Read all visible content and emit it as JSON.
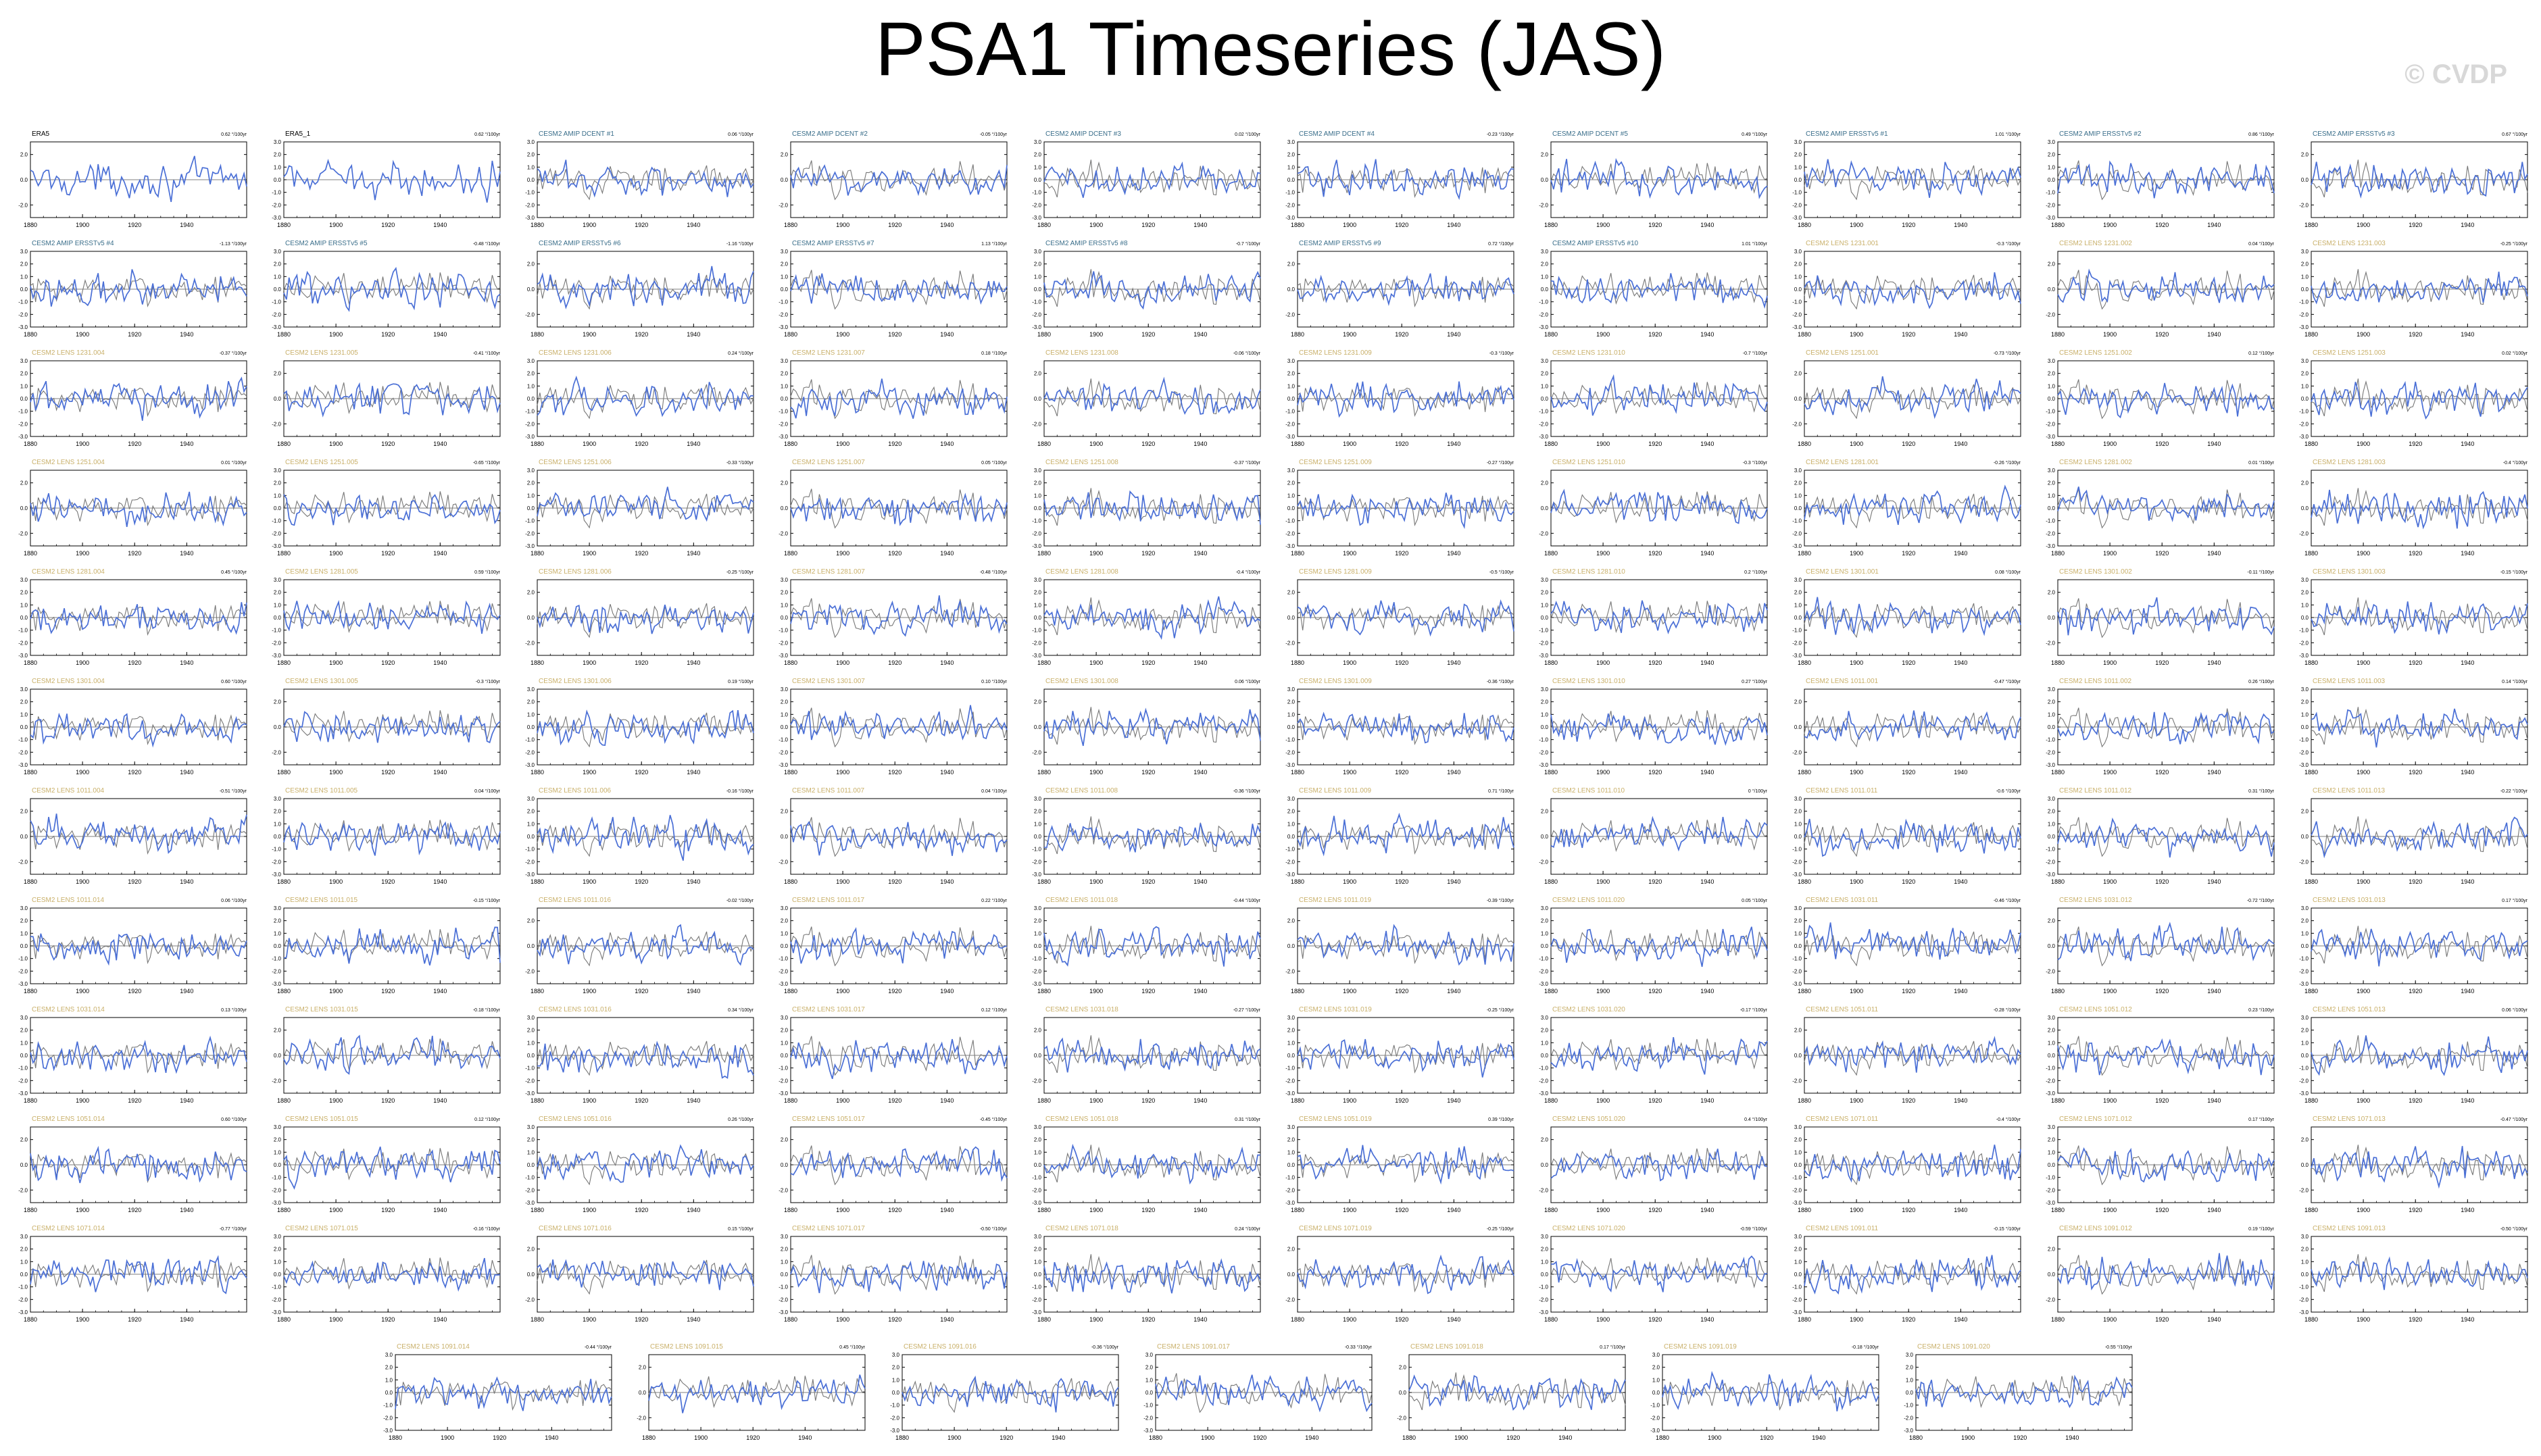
{
  "header": {
    "title": "PSA1 Timeseries (JAS)",
    "watermark": "© CVDP"
  },
  "colors": {
    "model_line": "#4a6fd6",
    "obs_line": "#777777",
    "obs_title": "#000000",
    "amip_title": "#3a6e8a",
    "lens_title": "#c9b06a"
  },
  "chart_data": {
    "type": "line",
    "x_ticks": [
      "1880",
      "1900",
      "1920",
      "1940"
    ],
    "xlim": [
      1880,
      1963
    ],
    "ylim": [
      -3,
      3
    ],
    "y_ticks_a": [
      "3.0",
      "2.0",
      "1.0",
      "0.0",
      "-1.0",
      "-2.0",
      "-3.0"
    ],
    "y_ticks_b": [
      "2.0",
      "0.0",
      "-2.0"
    ],
    "panels": [
      {
        "title": "ERA5",
        "trend": "0.62 °/100yr"
      },
      {
        "title": "ERA5_1",
        "trend": "0.62 °/100yr"
      },
      {
        "title": "CESM2 AMIP DCENT #1",
        "trend": "0.06 °/100yr"
      },
      {
        "title": "CESM2 AMIP DCENT #2",
        "trend": "-0.05 °/100yr"
      },
      {
        "title": "CESM2 AMIP DCENT #3",
        "trend": "0.02 °/100yr"
      },
      {
        "title": "CESM2 AMIP DCENT #4",
        "trend": "-0.23 °/100yr"
      },
      {
        "title": "CESM2 AMIP DCENT #5",
        "trend": "0.49 °/100yr"
      },
      {
        "title": "CESM2 AMIP ERSSTv5 #1",
        "trend": "1.01 °/100yr"
      },
      {
        "title": "CESM2 AMIP ERSSTv5 #2",
        "trend": "0.86 °/100yr"
      },
      {
        "title": "CESM2 AMIP ERSSTv5 #3",
        "trend": "0.67 °/100yr"
      },
      {
        "title": "CESM2 AMIP ERSSTv5 #4",
        "trend": "-1.13 °/100yr"
      },
      {
        "title": "CESM2 AMIP ERSSTv5 #5",
        "trend": "-0.48 °/100yr"
      },
      {
        "title": "CESM2 AMIP ERSSTv5 #6",
        "trend": "-1.16 °/100yr"
      },
      {
        "title": "CESM2 AMIP ERSSTv5 #7",
        "trend": "1.13 °/100yr"
      },
      {
        "title": "CESM2 AMIP ERSSTv5 #8",
        "trend": "-0.7 °/100yr"
      },
      {
        "title": "CESM2 AMIP ERSSTv5 #9",
        "trend": "0.72 °/100yr"
      },
      {
        "title": "CESM2 AMIP ERSSTv5 #10",
        "trend": "1.01 °/100yr"
      },
      {
        "title": "CESM2 LENS 1231.001",
        "trend": "-0.3 °/100yr"
      },
      {
        "title": "CESM2 LENS 1231.002",
        "trend": "0.04 °/100yr"
      },
      {
        "title": "CESM2 LENS 1231.003",
        "trend": "-0.25 °/100yr"
      },
      {
        "title": "CESM2 LENS 1231.004",
        "trend": "-0.37 °/100yr"
      },
      {
        "title": "CESM2 LENS 1231.005",
        "trend": "-0.41 °/100yr"
      },
      {
        "title": "CESM2 LENS 1231.006",
        "trend": "0.24 °/100yr"
      },
      {
        "title": "CESM2 LENS 1231.007",
        "trend": "0.18 °/100yr"
      },
      {
        "title": "CESM2 LENS 1231.008",
        "trend": "-0.06 °/100yr"
      },
      {
        "title": "CESM2 LENS 1231.009",
        "trend": "-0.3 °/100yr"
      },
      {
        "title": "CESM2 LENS 1231.010",
        "trend": "-0.7 °/100yr"
      },
      {
        "title": "CESM2 LENS 1251.001",
        "trend": "-0.73 °/100yr"
      },
      {
        "title": "CESM2 LENS 1251.002",
        "trend": "0.12 °/100yr"
      },
      {
        "title": "CESM2 LENS 1251.003",
        "trend": "0.02 °/100yr"
      },
      {
        "title": "CESM2 LENS 1251.004",
        "trend": "0.01 °/100yr"
      },
      {
        "title": "CESM2 LENS 1251.005",
        "trend": "-0.65 °/100yr"
      },
      {
        "title": "CESM2 LENS 1251.006",
        "trend": "-0.33 °/100yr"
      },
      {
        "title": "CESM2 LENS 1251.007",
        "trend": "0.05 °/100yr"
      },
      {
        "title": "CESM2 LENS 1251.008",
        "trend": "-0.37 °/100yr"
      },
      {
        "title": "CESM2 LENS 1251.009",
        "trend": "-0.27 °/100yr"
      },
      {
        "title": "CESM2 LENS 1251.010",
        "trend": "-0.3 °/100yr"
      },
      {
        "title": "CESM2 LENS 1281.001",
        "trend": "-0.26 °/100yr"
      },
      {
        "title": "CESM2 LENS 1281.002",
        "trend": "0.01 °/100yr"
      },
      {
        "title": "CESM2 LENS 1281.003",
        "trend": "-0.4 °/100yr"
      },
      {
        "title": "CESM2 LENS 1281.004",
        "trend": "0.45 °/100yr"
      },
      {
        "title": "CESM2 LENS 1281.005",
        "trend": "0.59 °/100yr"
      },
      {
        "title": "CESM2 LENS 1281.006",
        "trend": "-0.25 °/100yr"
      },
      {
        "title": "CESM2 LENS 1281.007",
        "trend": "-0.48 °/100yr"
      },
      {
        "title": "CESM2 LENS 1281.008",
        "trend": "-0.4 °/100yr"
      },
      {
        "title": "CESM2 LENS 1281.009",
        "trend": "-0.5 °/100yr"
      },
      {
        "title": "CESM2 LENS 1281.010",
        "trend": "0.2 °/100yr"
      },
      {
        "title": "CESM2 LENS 1301.001",
        "trend": "0.08 °/100yr"
      },
      {
        "title": "CESM2 LENS 1301.002",
        "trend": "-0.11 °/100yr"
      },
      {
        "title": "CESM2 LENS 1301.003",
        "trend": "-0.15 °/100yr"
      },
      {
        "title": "CESM2 LENS 1301.004",
        "trend": "0.60 °/100yr"
      },
      {
        "title": "CESM2 LENS 1301.005",
        "trend": "-0.3 °/100yr"
      },
      {
        "title": "CESM2 LENS 1301.006",
        "trend": "0.19 °/100yr"
      },
      {
        "title": "CESM2 LENS 1301.007",
        "trend": "0.10 °/100yr"
      },
      {
        "title": "CESM2 LENS 1301.008",
        "trend": "0.06 °/100yr"
      },
      {
        "title": "CESM2 LENS 1301.009",
        "trend": "-0.36 °/100yr"
      },
      {
        "title": "CESM2 LENS 1301.010",
        "trend": "0.27 °/100yr"
      },
      {
        "title": "CESM2 LENS 1011.001",
        "trend": "-0.47 °/100yr"
      },
      {
        "title": "CESM2 LENS 1011.002",
        "trend": "0.26 °/100yr"
      },
      {
        "title": "CESM2 LENS 1011.003",
        "trend": "0.14 °/100yr"
      },
      {
        "title": "CESM2 LENS 1011.004",
        "trend": "-0.51 °/100yr"
      },
      {
        "title": "CESM2 LENS 1011.005",
        "trend": "0.04 °/100yr"
      },
      {
        "title": "CESM2 LENS 1011.006",
        "trend": "-0.16 °/100yr"
      },
      {
        "title": "CESM2 LENS 1011.007",
        "trend": "0.04 °/100yr"
      },
      {
        "title": "CESM2 LENS 1011.008",
        "trend": "-0.36 °/100yr"
      },
      {
        "title": "CESM2 LENS 1011.009",
        "trend": "0.71 °/100yr"
      },
      {
        "title": "CESM2 LENS 1011.010",
        "trend": "0 °/100yr"
      },
      {
        "title": "CESM2 LENS 1011.011",
        "trend": "-0.6 °/100yr"
      },
      {
        "title": "CESM2 LENS 1011.012",
        "trend": "0.31 °/100yr"
      },
      {
        "title": "CESM2 LENS 1011.013",
        "trend": "-0.22 °/100yr"
      },
      {
        "title": "CESM2 LENS 1011.014",
        "trend": "0.06 °/100yr"
      },
      {
        "title": "CESM2 LENS 1011.015",
        "trend": "-0.15 °/100yr"
      },
      {
        "title": "CESM2 LENS 1011.016",
        "trend": "-0.02 °/100yr"
      },
      {
        "title": "CESM2 LENS 1011.017",
        "trend": "0.22 °/100yr"
      },
      {
        "title": "CESM2 LENS 1011.018",
        "trend": "-0.44 °/100yr"
      },
      {
        "title": "CESM2 LENS 1011.019",
        "trend": "-0.39 °/100yr"
      },
      {
        "title": "CESM2 LENS 1011.020",
        "trend": "0.05 °/100yr"
      },
      {
        "title": "CESM2 LENS 1031.011",
        "trend": "-0.46 °/100yr"
      },
      {
        "title": "CESM2 LENS 1031.012",
        "trend": "-0.72 °/100yr"
      },
      {
        "title": "CESM2 LENS 1031.013",
        "trend": "0.17 °/100yr"
      },
      {
        "title": "CESM2 LENS 1031.014",
        "trend": "0.13 °/100yr"
      },
      {
        "title": "CESM2 LENS 1031.015",
        "trend": "-0.18 °/100yr"
      },
      {
        "title": "CESM2 LENS 1031.016",
        "trend": "0.34 °/100yr"
      },
      {
        "title": "CESM2 LENS 1031.017",
        "trend": "0.12 °/100yr"
      },
      {
        "title": "CESM2 LENS 1031.018",
        "trend": "-0.27 °/100yr"
      },
      {
        "title": "CESM2 LENS 1031.019",
        "trend": "-0.25 °/100yr"
      },
      {
        "title": "CESM2 LENS 1031.020",
        "trend": "-0.17 °/100yr"
      },
      {
        "title": "CESM2 LENS 1051.011",
        "trend": "-0.28 °/100yr"
      },
      {
        "title": "CESM2 LENS 1051.012",
        "trend": "0.23 °/100yr"
      },
      {
        "title": "CESM2 LENS 1051.013",
        "trend": "0.06 °/100yr"
      },
      {
        "title": "CESM2 LENS 1051.014",
        "trend": "0.60 °/100yr"
      },
      {
        "title": "CESM2 LENS 1051.015",
        "trend": "0.12 °/100yr"
      },
      {
        "title": "CESM2 LENS 1051.016",
        "trend": "0.26 °/100yr"
      },
      {
        "title": "CESM2 LENS 1051.017",
        "trend": "-0.45 °/100yr"
      },
      {
        "title": "CESM2 LENS 1051.018",
        "trend": "0.31 °/100yr"
      },
      {
        "title": "CESM2 LENS 1051.019",
        "trend": "0.39 °/100yr"
      },
      {
        "title": "CESM2 LENS 1051.020",
        "trend": "0.4 °/100yr"
      },
      {
        "title": "CESM2 LENS 1071.011",
        "trend": "-0.4 °/100yr"
      },
      {
        "title": "CESM2 LENS 1071.012",
        "trend": "0.17 °/100yr"
      },
      {
        "title": "CESM2 LENS 1071.013",
        "trend": "-0.47 °/100yr"
      },
      {
        "title": "CESM2 LENS 1071.014",
        "trend": "-0.77 °/100yr"
      },
      {
        "title": "CESM2 LENS 1071.015",
        "trend": "-0.16 °/100yr"
      },
      {
        "title": "CESM2 LENS 1071.016",
        "trend": "0.15 °/100yr"
      },
      {
        "title": "CESM2 LENS 1071.017",
        "trend": "-0.50 °/100yr"
      },
      {
        "title": "CESM2 LENS 1071.018",
        "trend": "0.24 °/100yr"
      },
      {
        "title": "CESM2 LENS 1071.019",
        "trend": "-0.25 °/100yr"
      },
      {
        "title": "CESM2 LENS 1071.020",
        "trend": "-0.59 °/100yr"
      },
      {
        "title": "CESM2 LENS 1091.011",
        "trend": "-0.15 °/100yr"
      },
      {
        "title": "CESM2 LENS 1091.012",
        "trend": "0.19 °/100yr"
      },
      {
        "title": "CESM2 LENS 1091.013",
        "trend": "-0.50 °/100yr"
      },
      {
        "title": "CESM2 LENS 1091.014",
        "trend": "-0.44 °/100yr"
      },
      {
        "title": "CESM2 LENS 1091.015",
        "trend": "0.45 °/100yr"
      },
      {
        "title": "CESM2 LENS 1091.016",
        "trend": "-0.36 °/100yr"
      },
      {
        "title": "CESM2 LENS 1091.017",
        "trend": "-0.33 °/100yr"
      },
      {
        "title": "CESM2 LENS 1091.018",
        "trend": "0.17 °/100yr"
      },
      {
        "title": "CESM2 LENS 1091.019",
        "trend": "-0.18 °/100yr"
      },
      {
        "title": "CESM2 LENS 1091.020",
        "trend": "-0.55 °/100yr"
      }
    ]
  }
}
